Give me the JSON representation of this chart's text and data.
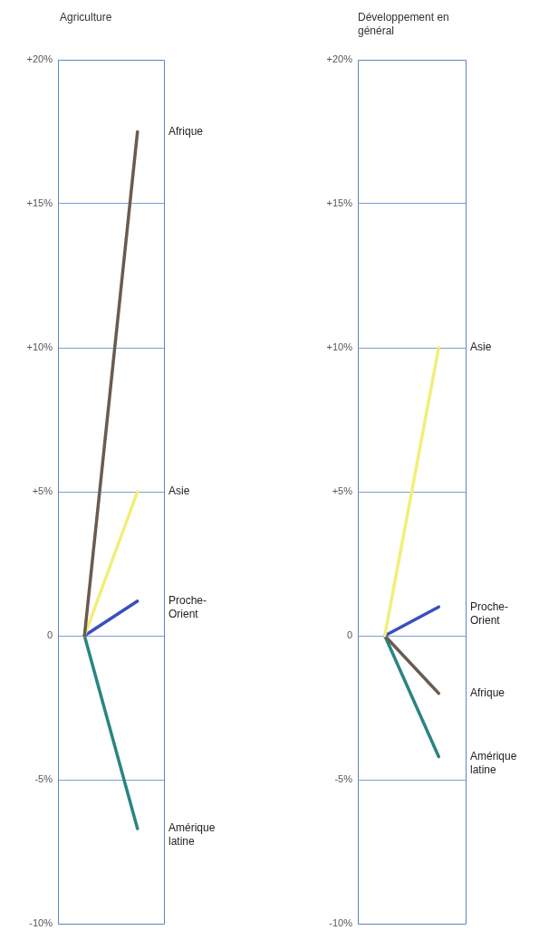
{
  "chart_data": [
    {
      "type": "line",
      "title": "Agriculture",
      "categories": [
        null,
        null
      ],
      "series": [
        {
          "name": "Afrique",
          "color": "#6b5b4f",
          "values": [
            0,
            17.5
          ]
        },
        {
          "name": "Asie",
          "color": "#f2ee78",
          "values": [
            0,
            5
          ]
        },
        {
          "name": "Proche-Orient",
          "color": "#3a4fc0",
          "values": [
            0,
            1.2
          ]
        },
        {
          "name": "Amérique latine",
          "color": "#2b8580",
          "values": [
            0,
            -6.7
          ]
        }
      ],
      "ylim": [
        -10,
        20
      ],
      "yticks": [
        {
          "value": -10,
          "label": "-10%"
        },
        {
          "value": -5,
          "label": "-5%"
        },
        {
          "value": 0,
          "label": "0"
        },
        {
          "value": 5,
          "label": "+5%"
        },
        {
          "value": 10,
          "label": "+10%"
        },
        {
          "value": 15,
          "label": "+15%"
        },
        {
          "value": 20,
          "label": "+20%"
        }
      ],
      "grid": "y",
      "tick_labels": "y"
    },
    {
      "type": "line",
      "title": "Développement en général",
      "categories": [
        null,
        null
      ],
      "series": [
        {
          "name": "Asie",
          "color": "#f2ee78",
          "values": [
            0,
            10
          ]
        },
        {
          "name": "Proche-Orient",
          "color": "#3a4fc0",
          "values": [
            0,
            1
          ]
        },
        {
          "name": "Afrique",
          "color": "#6b5b4f",
          "values": [
            0,
            -2
          ]
        },
        {
          "name": "Amérique latine",
          "color": "#2b8580",
          "values": [
            0,
            -4.2
          ]
        }
      ],
      "ylim": [
        -10,
        20
      ],
      "yticks": [
        {
          "value": -10,
          "label": "-10%"
        },
        {
          "value": -5,
          "label": "-5%"
        },
        {
          "value": 0,
          "label": "0"
        },
        {
          "value": 5,
          "label": "+5%"
        },
        {
          "value": 10,
          "label": "+10%"
        },
        {
          "value": 15,
          "label": "+15%"
        },
        {
          "value": 20,
          "label": "+20%"
        }
      ],
      "grid": "y",
      "tick_labels": "y"
    }
  ]
}
